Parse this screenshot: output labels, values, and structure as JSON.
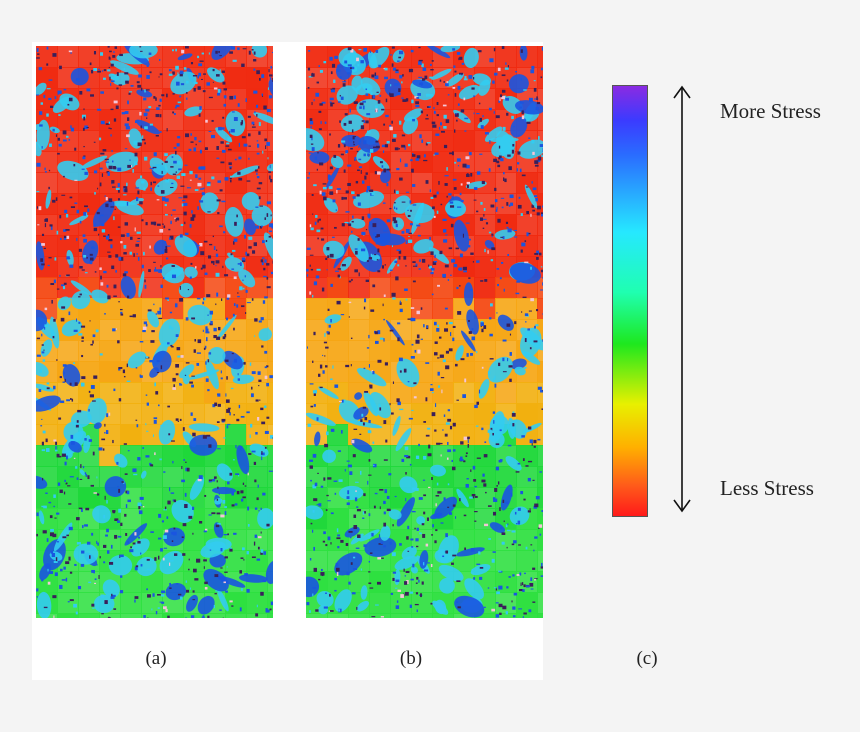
{
  "figure": {
    "panels": [
      {
        "id": "a",
        "caption": "(a)"
      },
      {
        "id": "b",
        "caption": "(b)"
      }
    ],
    "colorbar": {
      "caption": "(c)",
      "top_label": "More Stress",
      "bottom_label": "Less Stress",
      "stops": [
        {
          "pos": 0.0,
          "color": "#8a2be2"
        },
        {
          "pos": 0.08,
          "color": "#3b3bff"
        },
        {
          "pos": 0.16,
          "color": "#2a6cff"
        },
        {
          "pos": 0.34,
          "color": "#26e8ff"
        },
        {
          "pos": 0.48,
          "color": "#1fffb0"
        },
        {
          "pos": 0.6,
          "color": "#1ee81e"
        },
        {
          "pos": 0.74,
          "color": "#e8f000"
        },
        {
          "pos": 0.84,
          "color": "#ffb000"
        },
        {
          "pos": 0.93,
          "color": "#ff5a1a"
        },
        {
          "pos": 1.0,
          "color": "#ff1a1a"
        }
      ]
    },
    "map_colors": {
      "background_bands": [
        "#f02a10",
        "#f4450e",
        "#f6a614",
        "#f2b00f",
        "#1fd83a",
        "#2ee040"
      ],
      "cyan": "#33ccf0",
      "blue": "#1a55e0",
      "dark": "#3a1f5a",
      "pink": "#f4c6d8"
    }
  }
}
